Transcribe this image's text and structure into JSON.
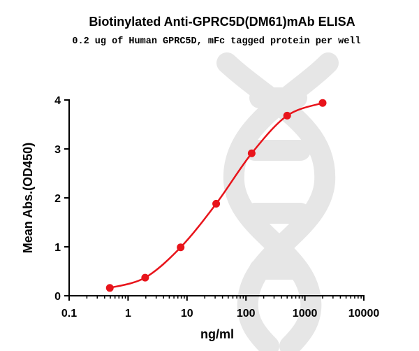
{
  "chart_data": {
    "type": "scatter",
    "title": "Biotinylated Anti-GPRC5D(DM61)mAb ELISA",
    "subtitle": "0.2 ug of Human GPRC5D, mFc tagged protein per well",
    "xlabel": "ng/ml",
    "ylabel": "Mean Abs.(OD450)",
    "xscale": "log",
    "xlim": [
      0.1,
      10000
    ],
    "ylim": [
      0,
      4
    ],
    "x_ticks": [
      "0.1",
      "1",
      "10",
      "100",
      "1000",
      "10000"
    ],
    "y_ticks": [
      "0",
      "1",
      "2",
      "3",
      "4"
    ],
    "grid": false,
    "legend": "none",
    "series": [
      {
        "x": [
          0.49,
          1.95,
          7.8,
          31.25,
          125,
          500,
          2000
        ],
        "y": [
          0.16,
          0.37,
          0.99,
          1.88,
          2.91,
          3.68,
          3.94
        ],
        "color": "#e8141b",
        "fit_line": true
      }
    ],
    "watermark": "dna-helix-icon"
  }
}
